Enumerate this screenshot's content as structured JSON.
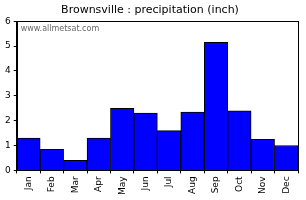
{
  "chart_data": {
    "type": "bar",
    "title": "Brownsville : precipitation (inch)",
    "categories": [
      "Jan",
      "Feb",
      "Mar",
      "Apr",
      "May",
      "Jun",
      "Jul",
      "Aug",
      "Sep",
      "Oct",
      "Nov",
      "Dec"
    ],
    "values": [
      1.3,
      0.85,
      0.4,
      1.3,
      2.5,
      2.3,
      1.6,
      2.35,
      5.15,
      2.4,
      1.25,
      1.0
    ],
    "color": "#0000ff",
    "ylim": [
      0,
      6
    ],
    "yticks": [
      0,
      1,
      2,
      3,
      4,
      5,
      6
    ],
    "grid": false,
    "annotations": [
      "www.allmetsat.com"
    ]
  }
}
